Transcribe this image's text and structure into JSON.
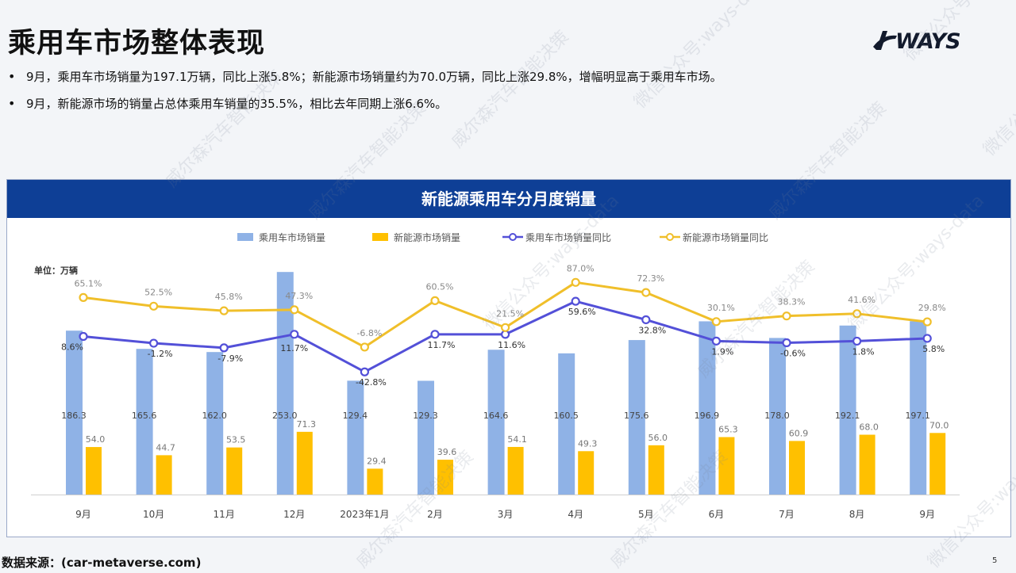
{
  "slide": {
    "title": "乘用车市场整体表现",
    "logo_text": "WAYS",
    "bullets": [
      "9月，乘用车市场销量为197.1万辆，同比上涨5.8%；新能源市场销量约为70.0万辆，同比上涨29.8%，增幅明显高于乘用车市场。",
      "9月，新能源市场的销量占总体乘用车销量的35.5%，相比去年同期上涨6.6%。"
    ],
    "bullet_symbol": "•",
    "footer": "数据来源：(car-metaverse.com)",
    "page_number": "5",
    "watermark_lines": [
      "威尔森汽车智能决策",
      "微信公众号:ways-data"
    ]
  },
  "chart_data": {
    "type": "bar",
    "title": "新能源乘用车分月度销量",
    "unit_label": "单位：万辆",
    "categories": [
      "9月",
      "10月",
      "11月",
      "12月",
      "2023年1月",
      "2月",
      "3月",
      "4月",
      "5月",
      "6月",
      "7月",
      "8月",
      "9月"
    ],
    "series": [
      {
        "name": "乘用车市场销量",
        "kind": "bar",
        "color": "#8fb2e6",
        "values": [
          186.3,
          165.6,
          162.0,
          253.0,
          129.4,
          129.3,
          164.6,
          160.5,
          175.6,
          196.9,
          178.0,
          192.1,
          197.1
        ]
      },
      {
        "name": "新能源市场销量",
        "kind": "bar",
        "color": "#ffc000",
        "values": [
          54.0,
          44.7,
          53.5,
          71.3,
          29.4,
          39.6,
          54.1,
          49.3,
          56.0,
          65.3,
          60.9,
          68.0,
          70.0
        ]
      },
      {
        "name": "乘用车市场销量同比",
        "kind": "line",
        "color": "#5350d8",
        "values": [
          8.6,
          -1.2,
          -7.9,
          11.7,
          -42.8,
          11.7,
          11.6,
          59.6,
          32.8,
          1.9,
          -0.6,
          1.8,
          5.8
        ]
      },
      {
        "name": "新能源市场销量同比",
        "kind": "line",
        "color": "#f0bf2a",
        "values": [
          65.1,
          52.5,
          45.8,
          47.3,
          -6.8,
          60.5,
          21.5,
          87.0,
          72.3,
          30.1,
          38.3,
          41.6,
          29.8
        ]
      }
    ],
    "legend_position": "top",
    "grid": false
  }
}
